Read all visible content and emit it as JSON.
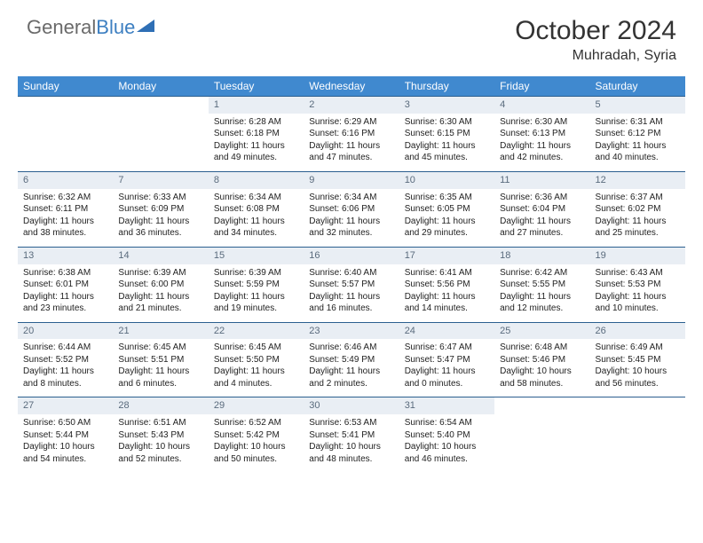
{
  "brand": {
    "part1": "General",
    "part2": "Blue"
  },
  "title": "October 2024",
  "location": "Muhradah, Syria",
  "colors": {
    "header_bg": "#4089cf",
    "header_text": "#ffffff",
    "daynum_bg": "#e9eef4",
    "daynum_text": "#5a6b7d",
    "cell_border": "#2b5f8f",
    "logo_gray": "#6a6a6a",
    "logo_blue": "#3d7fc1"
  },
  "weekdays": [
    "Sunday",
    "Monday",
    "Tuesday",
    "Wednesday",
    "Thursday",
    "Friday",
    "Saturday"
  ],
  "grid": {
    "start_weekday_index": 2,
    "days_in_month": 31
  },
  "days": {
    "1": {
      "sunrise": "6:28 AM",
      "sunset": "6:18 PM",
      "daylight": "11 hours and 49 minutes."
    },
    "2": {
      "sunrise": "6:29 AM",
      "sunset": "6:16 PM",
      "daylight": "11 hours and 47 minutes."
    },
    "3": {
      "sunrise": "6:30 AM",
      "sunset": "6:15 PM",
      "daylight": "11 hours and 45 minutes."
    },
    "4": {
      "sunrise": "6:30 AM",
      "sunset": "6:13 PM",
      "daylight": "11 hours and 42 minutes."
    },
    "5": {
      "sunrise": "6:31 AM",
      "sunset": "6:12 PM",
      "daylight": "11 hours and 40 minutes."
    },
    "6": {
      "sunrise": "6:32 AM",
      "sunset": "6:11 PM",
      "daylight": "11 hours and 38 minutes."
    },
    "7": {
      "sunrise": "6:33 AM",
      "sunset": "6:09 PM",
      "daylight": "11 hours and 36 minutes."
    },
    "8": {
      "sunrise": "6:34 AM",
      "sunset": "6:08 PM",
      "daylight": "11 hours and 34 minutes."
    },
    "9": {
      "sunrise": "6:34 AM",
      "sunset": "6:06 PM",
      "daylight": "11 hours and 32 minutes."
    },
    "10": {
      "sunrise": "6:35 AM",
      "sunset": "6:05 PM",
      "daylight": "11 hours and 29 minutes."
    },
    "11": {
      "sunrise": "6:36 AM",
      "sunset": "6:04 PM",
      "daylight": "11 hours and 27 minutes."
    },
    "12": {
      "sunrise": "6:37 AM",
      "sunset": "6:02 PM",
      "daylight": "11 hours and 25 minutes."
    },
    "13": {
      "sunrise": "6:38 AM",
      "sunset": "6:01 PM",
      "daylight": "11 hours and 23 minutes."
    },
    "14": {
      "sunrise": "6:39 AM",
      "sunset": "6:00 PM",
      "daylight": "11 hours and 21 minutes."
    },
    "15": {
      "sunrise": "6:39 AM",
      "sunset": "5:59 PM",
      "daylight": "11 hours and 19 minutes."
    },
    "16": {
      "sunrise": "6:40 AM",
      "sunset": "5:57 PM",
      "daylight": "11 hours and 16 minutes."
    },
    "17": {
      "sunrise": "6:41 AM",
      "sunset": "5:56 PM",
      "daylight": "11 hours and 14 minutes."
    },
    "18": {
      "sunrise": "6:42 AM",
      "sunset": "5:55 PM",
      "daylight": "11 hours and 12 minutes."
    },
    "19": {
      "sunrise": "6:43 AM",
      "sunset": "5:53 PM",
      "daylight": "11 hours and 10 minutes."
    },
    "20": {
      "sunrise": "6:44 AM",
      "sunset": "5:52 PM",
      "daylight": "11 hours and 8 minutes."
    },
    "21": {
      "sunrise": "6:45 AM",
      "sunset": "5:51 PM",
      "daylight": "11 hours and 6 minutes."
    },
    "22": {
      "sunrise": "6:45 AM",
      "sunset": "5:50 PM",
      "daylight": "11 hours and 4 minutes."
    },
    "23": {
      "sunrise": "6:46 AM",
      "sunset": "5:49 PM",
      "daylight": "11 hours and 2 minutes."
    },
    "24": {
      "sunrise": "6:47 AM",
      "sunset": "5:47 PM",
      "daylight": "11 hours and 0 minutes."
    },
    "25": {
      "sunrise": "6:48 AM",
      "sunset": "5:46 PM",
      "daylight": "10 hours and 58 minutes."
    },
    "26": {
      "sunrise": "6:49 AM",
      "sunset": "5:45 PM",
      "daylight": "10 hours and 56 minutes."
    },
    "27": {
      "sunrise": "6:50 AM",
      "sunset": "5:44 PM",
      "daylight": "10 hours and 54 minutes."
    },
    "28": {
      "sunrise": "6:51 AM",
      "sunset": "5:43 PM",
      "daylight": "10 hours and 52 minutes."
    },
    "29": {
      "sunrise": "6:52 AM",
      "sunset": "5:42 PM",
      "daylight": "10 hours and 50 minutes."
    },
    "30": {
      "sunrise": "6:53 AM",
      "sunset": "5:41 PM",
      "daylight": "10 hours and 48 minutes."
    },
    "31": {
      "sunrise": "6:54 AM",
      "sunset": "5:40 PM",
      "daylight": "10 hours and 46 minutes."
    }
  },
  "labels": {
    "sunrise_prefix": "Sunrise: ",
    "sunset_prefix": "Sunset: ",
    "daylight_prefix": "Daylight: "
  }
}
